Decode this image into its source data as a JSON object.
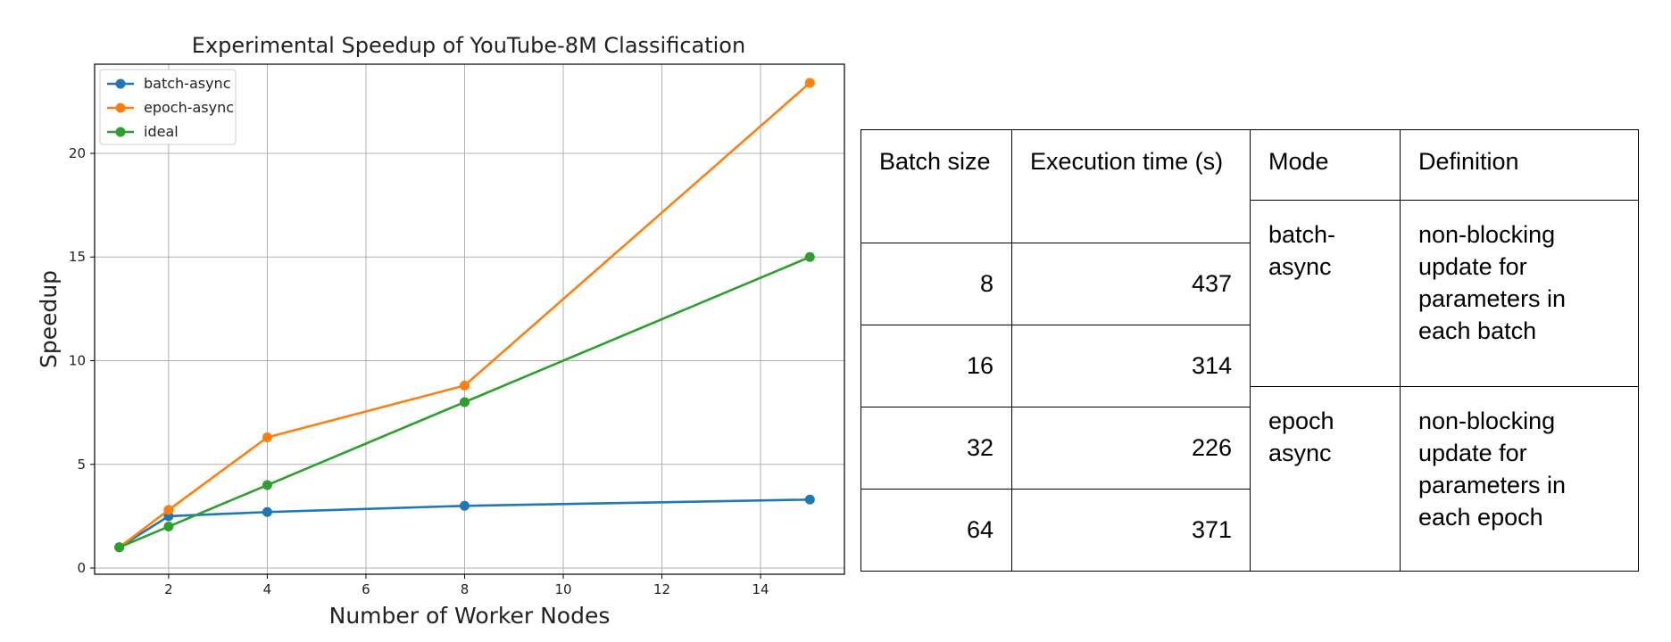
{
  "chart_data": {
    "type": "line",
    "title": "Experimental Speedup of YouTube-8M Classification",
    "xlabel": "Number of Worker Nodes",
    "ylabel": "Speedup",
    "xlim": [
      0.5,
      15.7
    ],
    "ylim": [
      -0.3,
      24.3
    ],
    "xticks": [
      2,
      4,
      6,
      8,
      10,
      12,
      14
    ],
    "yticks": [
      0,
      5,
      10,
      15,
      20
    ],
    "grid": true,
    "legend_position": "top-left",
    "series": [
      {
        "name": "batch-async",
        "color": "#1f77b4",
        "x": [
          1,
          2,
          4,
          8,
          15
        ],
        "y": [
          1.0,
          2.5,
          2.7,
          3.0,
          3.3
        ]
      },
      {
        "name": "epoch-async",
        "color": "#ff7f0e",
        "x": [
          1,
          2,
          4,
          8,
          15
        ],
        "y": [
          1.0,
          2.8,
          6.3,
          8.8,
          23.4
        ]
      },
      {
        "name": "ideal",
        "color": "#2ca02c",
        "x": [
          1,
          2,
          4,
          8,
          15
        ],
        "y": [
          1.0,
          2.0,
          4.0,
          8.0,
          15.0
        ]
      }
    ]
  },
  "table": {
    "headers": {
      "batch_size": "Batch size",
      "execution_time": "Execution time (s)",
      "mode": "Mode",
      "definition": "Definition"
    },
    "rows": [
      {
        "batch_size": "8",
        "execution_time": "437"
      },
      {
        "batch_size": "16",
        "execution_time": "314"
      },
      {
        "batch_size": "32",
        "execution_time": "226"
      },
      {
        "batch_size": "64",
        "execution_time": "371"
      }
    ],
    "modes": [
      {
        "mode": [
          "batch-",
          "async"
        ],
        "definition": [
          "non-blocking",
          "update for",
          "parameters in",
          "each batch"
        ]
      },
      {
        "mode": [
          "epoch",
          "async"
        ],
        "definition": [
          "non-blocking",
          "update for",
          "parameters in",
          "each epoch"
        ]
      }
    ]
  }
}
